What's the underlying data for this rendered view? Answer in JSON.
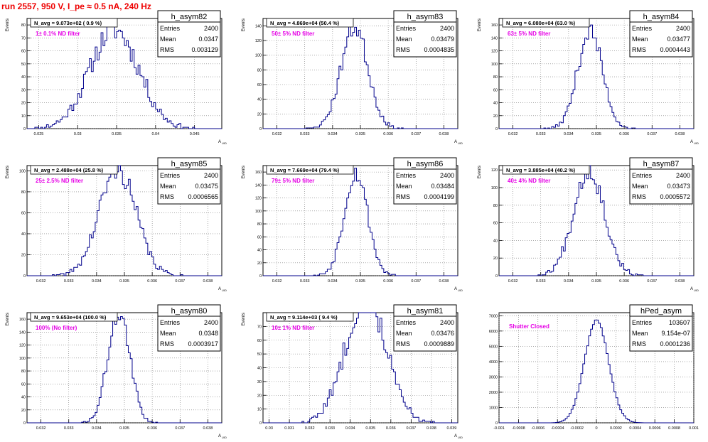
{
  "header": {
    "title": "run 2557,   950 V, I_pe ≈ 0.5 nA, 240 Hz"
  },
  "chart_data": [
    {
      "type": "bar",
      "name": "h_asym82",
      "navg": "N_avg = 9.073e+02 ( 0.9 %)",
      "filter": "1± 0.1% ND filter",
      "stats": {
        "Entries": "2400",
        "Mean": "0.0347",
        "RMS": "0.003129"
      },
      "xlim": [
        0.0235,
        0.0485
      ],
      "ylim": [
        0,
        85
      ],
      "xticks": [
        0.025,
        0.03,
        0.035,
        0.04,
        0.045
      ],
      "yticks": [
        0,
        10,
        20,
        30,
        40,
        50,
        60,
        70,
        80
      ],
      "ylabel": "Events",
      "xlabel": "A",
      "xlabel_sub": "UID",
      "mean": 0.0347,
      "rms": 0.003129,
      "peak": 78,
      "total": 2400,
      "bins": 100,
      "seed": 11
    },
    {
      "type": "bar",
      "name": "h_asym83",
      "navg": "N_avg = 4.869e+04 (50.4 %)",
      "filter": "50± 5% ND filter",
      "stats": {
        "Entries": "2400",
        "Mean": "0.03479",
        "RMS": "0.0004835"
      },
      "xlim": [
        0.0315,
        0.0385
      ],
      "ylim": [
        0,
        150
      ],
      "xticks": [
        0.032,
        0.033,
        0.034,
        0.035,
        0.036,
        0.037,
        0.038
      ],
      "yticks": [
        0,
        20,
        40,
        60,
        80,
        100,
        120,
        140
      ],
      "ylabel": "Events",
      "xlabel": "A",
      "xlabel_sub": "UID",
      "mean": 0.03479,
      "rms": 0.0004835,
      "peak": 140,
      "total": 2400,
      "bins": 100,
      "seed": 23
    },
    {
      "type": "bar",
      "name": "h_asym84",
      "navg": "N_avg = 6.080e+04 (63.0 %)",
      "filter": "63± 5% ND filter",
      "stats": {
        "Entries": "2400",
        "Mean": "0.03477",
        "RMS": "0.0004443"
      },
      "xlim": [
        0.0315,
        0.0385
      ],
      "ylim": [
        0,
        170
      ],
      "xticks": [
        0.032,
        0.033,
        0.034,
        0.035,
        0.036,
        0.037,
        0.038
      ],
      "yticks": [
        0,
        20,
        40,
        60,
        80,
        100,
        120,
        140,
        160
      ],
      "ylabel": "Events",
      "xlabel": "A",
      "xlabel_sub": "UID",
      "mean": 0.03477,
      "rms": 0.0004443,
      "peak": 160,
      "total": 2400,
      "bins": 100,
      "seed": 37
    },
    {
      "type": "bar",
      "name": "h_asym85",
      "navg": "N_avg = 2.488e+04 (25.8 %)",
      "filter": "25± 2.5% ND filter",
      "stats": {
        "Entries": "2400",
        "Mean": "0.03475",
        "RMS": "0.0006565"
      },
      "xlim": [
        0.0315,
        0.0385
      ],
      "ylim": [
        0,
        105
      ],
      "xticks": [
        0.032,
        0.033,
        0.034,
        0.035,
        0.036,
        0.037,
        0.038
      ],
      "yticks": [
        0,
        20,
        40,
        60,
        80,
        100
      ],
      "ylabel": "Events",
      "xlabel": "A",
      "xlabel_sub": "UID",
      "mean": 0.03475,
      "rms": 0.0006565,
      "peak": 105,
      "total": 2400,
      "bins": 100,
      "seed": 41
    },
    {
      "type": "bar",
      "name": "h_asym86",
      "navg": "N_avg = 7.669e+04 (79.4 %)",
      "filter": "79± 5% ND filter",
      "stats": {
        "Entries": "2400",
        "Mean": "0.03484",
        "RMS": "0.0004199"
      },
      "xlim": [
        0.0315,
        0.0385
      ],
      "ylim": [
        0,
        170
      ],
      "xticks": [
        0.032,
        0.033,
        0.034,
        0.035,
        0.036,
        0.037,
        0.038
      ],
      "yticks": [
        0,
        20,
        40,
        60,
        80,
        100,
        120,
        140,
        160
      ],
      "ylabel": "Events",
      "xlabel": "A",
      "xlabel_sub": "UID",
      "mean": 0.03484,
      "rms": 0.0004199,
      "peak": 155,
      "total": 2400,
      "bins": 100,
      "seed": 53
    },
    {
      "type": "bar",
      "name": "h_asym87",
      "navg": "N_avg = 3.885e+04 (40.2 %)",
      "filter": "40± 4% ND filter",
      "stats": {
        "Entries": "2400",
        "Mean": "0.03473",
        "RMS": "0.0005572"
      },
      "xlim": [
        0.0315,
        0.0385
      ],
      "ylim": [
        0,
        125
      ],
      "xticks": [
        0.032,
        0.033,
        0.034,
        0.035,
        0.036,
        0.037,
        0.038
      ],
      "yticks": [
        0,
        20,
        40,
        60,
        80,
        100,
        120
      ],
      "ylabel": "Events",
      "xlabel": "A",
      "xlabel_sub": "UID",
      "mean": 0.03473,
      "rms": 0.0005572,
      "peak": 118,
      "total": 2400,
      "bins": 100,
      "seed": 67
    },
    {
      "type": "bar",
      "name": "h_asym80",
      "navg": "N_avg = 9.653e+04 (100.0 %)",
      "filter": "100% (No filter)",
      "stats": {
        "Entries": "2400",
        "Mean": "0.0348",
        "RMS": "0.0003917"
      },
      "xlim": [
        0.0315,
        0.0385
      ],
      "ylim": [
        0,
        170
      ],
      "xticks": [
        0.032,
        0.033,
        0.034,
        0.035,
        0.036,
        0.037,
        0.038
      ],
      "yticks": [
        0,
        20,
        40,
        60,
        80,
        100,
        120,
        140,
        160
      ],
      "ylabel": "Events",
      "xlabel": "A",
      "xlabel_sub": "UID",
      "mean": 0.0348,
      "rms": 0.0003917,
      "peak": 160,
      "total": 2400,
      "bins": 100,
      "seed": 71
    },
    {
      "type": "bar",
      "name": "h_asym81",
      "navg": "N_avg = 9.114e+03 ( 9.4 %)",
      "filter": "10± 1% ND filter",
      "stats": {
        "Entries": "2400",
        "Mean": "0.03476",
        "RMS": "0.0009889"
      },
      "xlim": [
        0.0297,
        0.0393
      ],
      "ylim": [
        0,
        80
      ],
      "xticks": [
        0.03,
        0.031,
        0.032,
        0.033,
        0.034,
        0.035,
        0.036,
        0.037,
        0.038,
        0.039
      ],
      "yticks": [
        0,
        10,
        20,
        30,
        40,
        50,
        60,
        70
      ],
      "ylabel": "Events",
      "xlabel": "A",
      "xlabel_sub": "UID",
      "mean": 0.03476,
      "rms": 0.0009889,
      "peak": 70,
      "total": 2400,
      "bins": 100,
      "seed": 83
    },
    {
      "type": "bar",
      "name": "hPed_asym",
      "navg": "",
      "filter": "Shutter Closed",
      "stats": {
        "Entries": "103607",
        "Mean": "9.154e-07",
        "RMS": "0.0001236"
      },
      "xlim": [
        -0.001,
        0.001
      ],
      "ylim": [
        0,
        7200
      ],
      "xticks": [
        -0.001,
        -0.0008,
        -0.0006,
        -0.0004,
        -0.0002,
        0,
        0.0002,
        0.0004,
        0.0006,
        0.0008,
        0.001
      ],
      "yticks": [
        0,
        1000,
        2000,
        3000,
        4000,
        5000,
        6000,
        7000
      ],
      "ylabel": "",
      "xlabel": "",
      "xlabel_sub": "",
      "mean": 9.154e-07,
      "rms": 0.0001236,
      "peak": 6800,
      "total": 103607,
      "bins": 100,
      "seed": 97
    }
  ]
}
